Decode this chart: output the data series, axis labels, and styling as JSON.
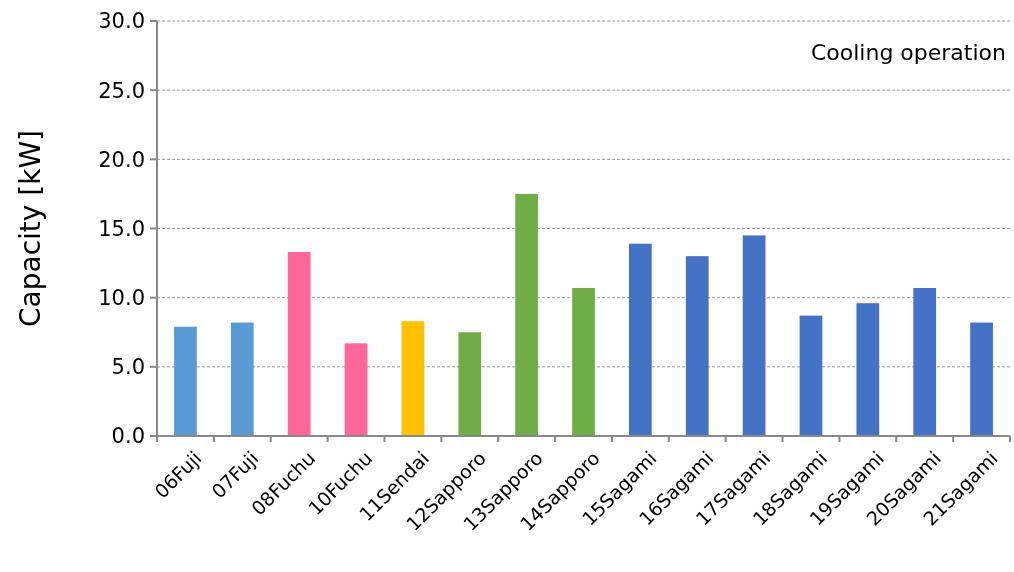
{
  "chart_data": {
    "type": "bar",
    "ylabel": "Capacity [kW]",
    "annotations": [
      "Cooling operation"
    ],
    "categories": [
      "06Fuji",
      "07Fuji",
      "08Fuchu",
      "10Fuchu",
      "11Sendai",
      "12Sapporo",
      "13Sapporo",
      "14Sapporo",
      "15Sagami",
      "16Sagami",
      "17Sagami",
      "18Sagami",
      "19Sagami",
      "20Sagami",
      "21Sagami"
    ],
    "values": [
      7.9,
      8.2,
      13.3,
      6.7,
      8.3,
      7.5,
      17.5,
      10.7,
      13.9,
      13.0,
      14.5,
      8.7,
      9.6,
      10.7,
      8.2
    ],
    "colors": [
      "#5b9bd5",
      "#5b9bd5",
      "#ff6699",
      "#ff6699",
      "#ffc000",
      "#70ad47",
      "#70ad47",
      "#70ad47",
      "#4472c4",
      "#4472c4",
      "#4472c4",
      "#4472c4",
      "#4472c4",
      "#4472c4",
      "#4472c4"
    ],
    "ylim": [
      0,
      30
    ],
    "yticks": [
      {
        "value": 0,
        "label": "0.0"
      },
      {
        "value": 5,
        "label": "5.0"
      },
      {
        "value": 10,
        "label": "10.0"
      },
      {
        "value": 15,
        "label": "15.0"
      },
      {
        "value": 20,
        "label": "20.0"
      },
      {
        "value": 25,
        "label": "25.0"
      },
      {
        "value": 30,
        "label": "30.0"
      }
    ],
    "grid": "y"
  }
}
